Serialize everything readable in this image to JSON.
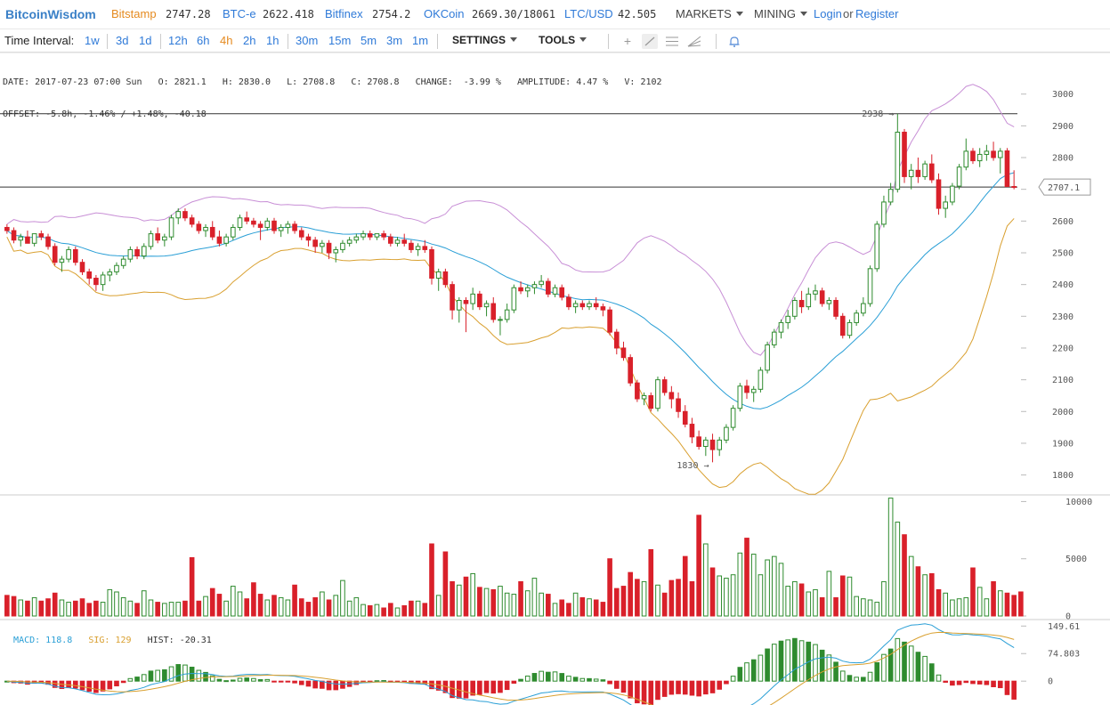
{
  "header": {
    "brand": "BitcoinWisdom",
    "tickers": [
      {
        "name": "Bitstamp",
        "price": "2747.28",
        "color": "#e58a1f"
      },
      {
        "name": "BTC-e",
        "price": "2622.418",
        "color": "#2f7ad8"
      },
      {
        "name": "Bitfinex",
        "price": "2754.2",
        "color": "#2f7ad8"
      },
      {
        "name": "OKCoin",
        "price": "2669.30/18061",
        "color": "#2f7ad8"
      },
      {
        "name": "LTC/USD",
        "price": "42.505",
        "color": "#2f7ad8"
      }
    ],
    "markets_label": "MARKETS",
    "mining_label": "MINING",
    "login_label": "Login",
    "or_label": "or",
    "register_label": "Register"
  },
  "toolbar": {
    "time_interval_label": "Time Interval:",
    "intervals": [
      "1w",
      "3d",
      "1d",
      "12h",
      "6h",
      "4h",
      "2h",
      "1h",
      "30m",
      "15m",
      "5m",
      "3m",
      "1m"
    ],
    "active_interval": "4h",
    "settings_label": "SETTINGS",
    "tools_label": "TOOLS",
    "tool_icons": [
      "crosshair-icon",
      "trendline-icon",
      "horizontal-lines-icon",
      "fan-icon",
      "alert-bell-icon"
    ]
  },
  "info": {
    "line1": "DATE: 2017-07-23 07:00 Sun   O: 2821.1   H: 2830.0   L: 2708.8   C: 2708.8   CHANGE:  -3.99 %   AMPLITUDE: 4.47 %   V: 2102",
    "line2": "OFFSET: -5.8h, -1.46% / +1.48%, -40.18"
  },
  "colors": {
    "up": "#2e8b2e",
    "down": "#d9202a",
    "ma": "#2a9fd6",
    "boll_upper": "#c88fd6",
    "boll_lower": "#d9a030",
    "macd_line": "#2a9fd6",
    "signal_line": "#d9a030"
  },
  "chart_data": {
    "type": "candlestick",
    "price_axis": {
      "ticks": [
        1800,
        1900,
        2000,
        2100,
        2200,
        2300,
        2400,
        2500,
        2600,
        2700,
        2800,
        2900,
        3000
      ],
      "range": [
        1740,
        3030
      ]
    },
    "last_price_label": "2707.1",
    "horizontal_lines": [
      2938,
      2707.1
    ],
    "annotations": [
      {
        "label": "2938 →",
        "value": 2938
      },
      {
        "label": "1830 →",
        "value": 1830
      }
    ],
    "candles": [
      [
        2580,
        2590,
        2560,
        2570
      ],
      [
        2570,
        2580,
        2530,
        2540
      ],
      [
        2540,
        2560,
        2520,
        2550
      ],
      [
        2550,
        2570,
        2530,
        2530
      ],
      [
        2530,
        2560,
        2520,
        2560
      ],
      [
        2560,
        2570,
        2540,
        2550
      ],
      [
        2550,
        2560,
        2510,
        2520
      ],
      [
        2520,
        2530,
        2460,
        2470
      ],
      [
        2470,
        2490,
        2440,
        2480
      ],
      [
        2480,
        2520,
        2470,
        2510
      ],
      [
        2510,
        2520,
        2460,
        2470
      ],
      [
        2470,
        2480,
        2430,
        2440
      ],
      [
        2440,
        2450,
        2400,
        2420
      ],
      [
        2420,
        2430,
        2380,
        2400
      ],
      [
        2400,
        2440,
        2380,
        2430
      ],
      [
        2430,
        2450,
        2410,
        2440
      ],
      [
        2440,
        2470,
        2430,
        2460
      ],
      [
        2460,
        2490,
        2450,
        2480
      ],
      [
        2480,
        2520,
        2470,
        2510
      ],
      [
        2510,
        2520,
        2480,
        2490
      ],
      [
        2490,
        2530,
        2480,
        2520
      ],
      [
        2520,
        2570,
        2510,
        2560
      ],
      [
        2560,
        2580,
        2530,
        2540
      ],
      [
        2540,
        2560,
        2520,
        2550
      ],
      [
        2550,
        2620,
        2540,
        2610
      ],
      [
        2610,
        2640,
        2590,
        2630
      ],
      [
        2630,
        2640,
        2600,
        2610
      ],
      [
        2610,
        2620,
        2580,
        2590
      ],
      [
        2590,
        2600,
        2560,
        2570
      ],
      [
        2570,
        2590,
        2550,
        2580
      ],
      [
        2580,
        2600,
        2540,
        2550
      ],
      [
        2550,
        2570,
        2520,
        2530
      ],
      [
        2530,
        2560,
        2520,
        2550
      ],
      [
        2550,
        2590,
        2540,
        2580
      ],
      [
        2580,
        2620,
        2570,
        2610
      ],
      [
        2610,
        2630,
        2590,
        2600
      ],
      [
        2600,
        2610,
        2580,
        2590
      ],
      [
        2590,
        2600,
        2540,
        2580
      ],
      [
        2580,
        2610,
        2570,
        2600
      ],
      [
        2600,
        2610,
        2560,
        2570
      ],
      [
        2570,
        2590,
        2550,
        2580
      ],
      [
        2580,
        2600,
        2560,
        2590
      ],
      [
        2590,
        2600,
        2560,
        2570
      ],
      [
        2570,
        2580,
        2540,
        2550
      ],
      [
        2550,
        2560,
        2520,
        2540
      ],
      [
        2540,
        2550,
        2500,
        2520
      ],
      [
        2520,
        2540,
        2500,
        2530
      ],
      [
        2530,
        2540,
        2480,
        2500
      ],
      [
        2500,
        2520,
        2470,
        2510
      ],
      [
        2510,
        2540,
        2500,
        2530
      ],
      [
        2530,
        2550,
        2520,
        2540
      ],
      [
        2540,
        2560,
        2530,
        2550
      ],
      [
        2550,
        2570,
        2540,
        2560
      ],
      [
        2560,
        2570,
        2540,
        2550
      ],
      [
        2550,
        2560,
        2540,
        2560
      ],
      [
        2560,
        2570,
        2540,
        2550
      ],
      [
        2550,
        2560,
        2520,
        2530
      ],
      [
        2530,
        2550,
        2520,
        2540
      ],
      [
        2540,
        2560,
        2520,
        2530
      ],
      [
        2530,
        2540,
        2500,
        2510
      ],
      [
        2510,
        2530,
        2490,
        2520
      ],
      [
        2520,
        2540,
        2500,
        2510
      ],
      [
        2510,
        2520,
        2400,
        2420
      ],
      [
        2420,
        2450,
        2380,
        2440
      ],
      [
        2440,
        2450,
        2390,
        2400
      ],
      [
        2400,
        2410,
        2290,
        2320
      ],
      [
        2320,
        2360,
        2280,
        2350
      ],
      [
        2350,
        2360,
        2250,
        2340
      ],
      [
        2340,
        2390,
        2320,
        2370
      ],
      [
        2370,
        2380,
        2320,
        2330
      ],
      [
        2330,
        2350,
        2300,
        2340
      ],
      [
        2340,
        2360,
        2280,
        2290
      ],
      [
        2290,
        2300,
        2240,
        2290
      ],
      [
        2290,
        2340,
        2280,
        2320
      ],
      [
        2320,
        2400,
        2310,
        2390
      ],
      [
        2390,
        2410,
        2370,
        2380
      ],
      [
        2380,
        2400,
        2360,
        2390
      ],
      [
        2390,
        2410,
        2370,
        2400
      ],
      [
        2400,
        2430,
        2390,
        2410
      ],
      [
        2410,
        2420,
        2360,
        2370
      ],
      [
        2370,
        2400,
        2360,
        2390
      ],
      [
        2390,
        2400,
        2350,
        2360
      ],
      [
        2360,
        2370,
        2320,
        2330
      ],
      [
        2330,
        2350,
        2310,
        2340
      ],
      [
        2340,
        2350,
        2320,
        2330
      ],
      [
        2330,
        2350,
        2320,
        2340
      ],
      [
        2340,
        2360,
        2320,
        2330
      ],
      [
        2330,
        2340,
        2300,
        2320
      ],
      [
        2320,
        2330,
        2240,
        2250
      ],
      [
        2250,
        2260,
        2180,
        2200
      ],
      [
        2200,
        2220,
        2160,
        2170
      ],
      [
        2170,
        2180,
        2080,
        2090
      ],
      [
        2090,
        2100,
        2030,
        2040
      ],
      [
        2040,
        2060,
        2020,
        2050
      ],
      [
        2050,
        2060,
        2000,
        2010
      ],
      [
        2010,
        2110,
        2000,
        2100
      ],
      [
        2100,
        2110,
        2050,
        2060
      ],
      [
        2060,
        2080,
        2010,
        2040
      ],
      [
        2040,
        2060,
        1980,
        2000
      ],
      [
        2000,
        2020,
        1950,
        1960
      ],
      [
        1960,
        1980,
        1900,
        1920
      ],
      [
        1920,
        1940,
        1880,
        1890
      ],
      [
        1890,
        1920,
        1860,
        1910
      ],
      [
        1910,
        1930,
        1840,
        1880
      ],
      [
        1880,
        1920,
        1860,
        1910
      ],
      [
        1910,
        1960,
        1900,
        1950
      ],
      [
        1950,
        2020,
        1940,
        2010
      ],
      [
        2010,
        2090,
        2000,
        2080
      ],
      [
        2080,
        2100,
        2040,
        2060
      ],
      [
        2060,
        2080,
        2030,
        2070
      ],
      [
        2070,
        2140,
        2060,
        2130
      ],
      [
        2130,
        2220,
        2120,
        2210
      ],
      [
        2210,
        2260,
        2200,
        2250
      ],
      [
        2250,
        2290,
        2230,
        2280
      ],
      [
        2280,
        2320,
        2260,
        2300
      ],
      [
        2300,
        2360,
        2290,
        2350
      ],
      [
        2350,
        2380,
        2310,
        2330
      ],
      [
        2330,
        2390,
        2320,
        2370
      ],
      [
        2370,
        2400,
        2350,
        2380
      ],
      [
        2380,
        2390,
        2330,
        2340
      ],
      [
        2340,
        2360,
        2320,
        2350
      ],
      [
        2350,
        2360,
        2290,
        2300
      ],
      [
        2300,
        2310,
        2230,
        2240
      ],
      [
        2240,
        2290,
        2230,
        2280
      ],
      [
        2280,
        2320,
        2270,
        2310
      ],
      [
        2310,
        2360,
        2300,
        2340
      ],
      [
        2340,
        2460,
        2330,
        2450
      ],
      [
        2450,
        2600,
        2440,
        2590
      ],
      [
        2590,
        2680,
        2580,
        2660
      ],
      [
        2660,
        2720,
        2650,
        2700
      ],
      [
        2700,
        2938,
        2690,
        2880
      ],
      [
        2880,
        2890,
        2720,
        2740
      ],
      [
        2740,
        2780,
        2700,
        2760
      ],
      [
        2760,
        2800,
        2720,
        2740
      ],
      [
        2740,
        2790,
        2730,
        2780
      ],
      [
        2780,
        2810,
        2720,
        2730
      ],
      [
        2730,
        2750,
        2620,
        2640
      ],
      [
        2640,
        2680,
        2610,
        2660
      ],
      [
        2660,
        2720,
        2650,
        2710
      ],
      [
        2710,
        2780,
        2700,
        2770
      ],
      [
        2770,
        2860,
        2760,
        2820
      ],
      [
        2820,
        2830,
        2780,
        2790
      ],
      [
        2790,
        2830,
        2770,
        2810
      ],
      [
        2810,
        2840,
        2790,
        2820
      ],
      [
        2820,
        2850,
        2790,
        2800
      ],
      [
        2800,
        2830,
        2750,
        2820
      ],
      [
        2821.1,
        2830,
        2708.8,
        2708.8
      ],
      [
        2708.8,
        2760,
        2700,
        2707.1
      ]
    ],
    "volume_axis": {
      "ticks": [
        0,
        5000,
        10000
      ],
      "range": [
        0,
        10500
      ]
    },
    "volumes": [
      1800,
      1700,
      1400,
      1300,
      1600,
      1300,
      1500,
      2000,
      1400,
      1200,
      1300,
      1500,
      1100,
      1300,
      1200,
      2300,
      2100,
      1600,
      1300,
      1100,
      2200,
      1400,
      1200,
      1100,
      1200,
      1200,
      1300,
      5100,
      1300,
      1700,
      2400,
      1900,
      1300,
      2600,
      2100,
      1500,
      2900,
      1900,
      1400,
      1800,
      1600,
      1400,
      2700,
      1500,
      1200,
      1600,
      2100,
      1400,
      1800,
      3100,
      1300,
      1600,
      1000,
      900,
      1000,
      700,
      1100,
      700,
      900,
      1300,
      1300,
      1100,
      6300,
      1800,
      5600,
      3000,
      2700,
      3400,
      3700,
      2500,
      2400,
      2300,
      2600,
      2000,
      1900,
      3000,
      2200,
      3300,
      2000,
      1900,
      1100,
      1400,
      1100,
      2000,
      1600,
      1500,
      1400,
      1200,
      5000,
      2400,
      2600,
      3800,
      3200,
      3000,
      5800,
      2700,
      2000,
      3100,
      3200,
      5200,
      3000,
      8800,
      6300,
      4200,
      3500,
      3300,
      3600,
      5500,
      6800,
      5400,
      3600,
      4900,
      5200,
      4600,
      2600,
      3000,
      2800,
      2100,
      2300,
      1600,
      3900,
      1600,
      3500,
      3400,
      1700,
      1500,
      1400,
      1200,
      3000,
      10300,
      8200,
      7100,
      5200,
      4300,
      3600,
      3700,
      2300,
      2000,
      1400,
      1500,
      1600,
      4200,
      2500,
      1500,
      3000,
      2200,
      2000,
      1800,
      2102
    ],
    "macd": {
      "macd_label": "MACD: 118.8",
      "sig_label": "SIG: 129",
      "hist_label": "HIST: -20.31",
      "axis_ticks": [
        "149.61",
        "74.803",
        "0"
      ],
      "range": [
        -60,
        160
      ]
    }
  }
}
